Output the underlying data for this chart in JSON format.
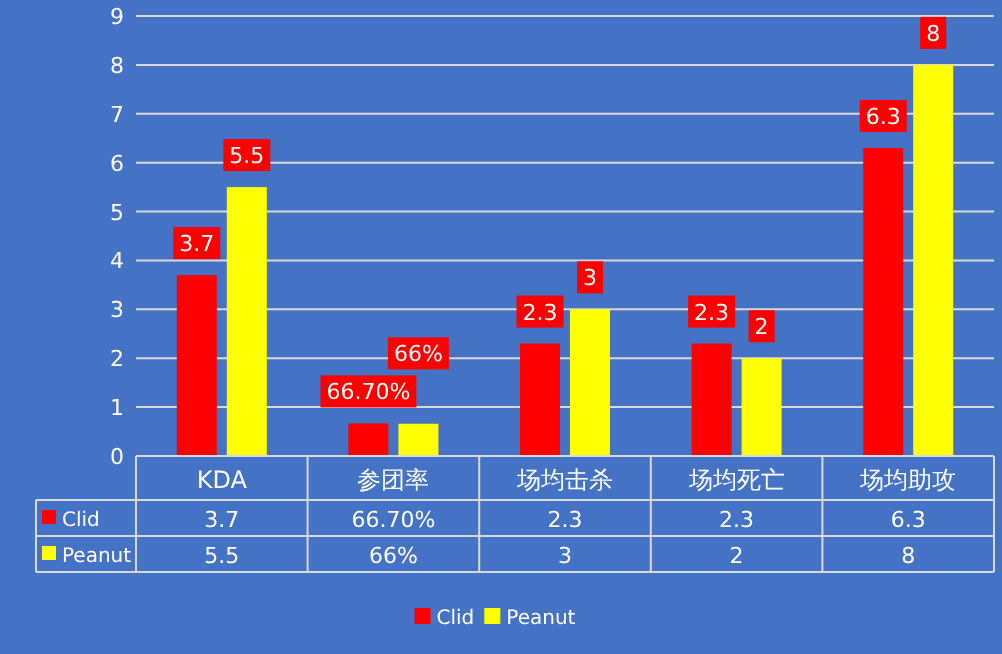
{
  "chart_data": {
    "type": "bar",
    "categories": [
      "KDA",
      "参团率",
      "场均击杀",
      "场均死亡",
      "场均助攻"
    ],
    "series": [
      {
        "name": "Clid",
        "color": "#ff0000",
        "values": [
          3.7,
          0.667,
          2.3,
          2.3,
          6.3
        ],
        "value_labels": [
          "3.7",
          "66.70%",
          "2.3",
          "2.3",
          "6.3"
        ]
      },
      {
        "name": "Peanut",
        "color": "#ffff00",
        "values": [
          5.5,
          0.66,
          3,
          2,
          8
        ],
        "value_labels": [
          "5.5",
          "66%",
          "3",
          "2",
          "8"
        ]
      }
    ],
    "ylim": [
      0,
      9
    ],
    "yticks": [
      0,
      1,
      2,
      3,
      4,
      5,
      6,
      7,
      8,
      9
    ],
    "grid": "y",
    "legend": "bottom"
  }
}
